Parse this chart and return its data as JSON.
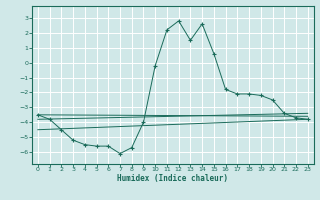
{
  "xlabel": "Humidex (Indice chaleur)",
  "bg_color": "#d0e8e8",
  "grid_color": "#b8d8d8",
  "line_color": "#1a6b5a",
  "xlim": [
    -0.5,
    23.5
  ],
  "ylim": [
    -6.8,
    3.8
  ],
  "xticks": [
    0,
    1,
    2,
    3,
    4,
    5,
    6,
    7,
    8,
    9,
    10,
    11,
    12,
    13,
    14,
    15,
    16,
    17,
    18,
    19,
    20,
    21,
    22,
    23
  ],
  "yticks": [
    -6,
    -5,
    -4,
    -3,
    -2,
    -1,
    0,
    1,
    2,
    3
  ],
  "series": {
    "main": {
      "x": [
        0,
        1,
        2,
        3,
        4,
        5,
        6,
        7,
        8,
        9,
        10,
        11,
        12,
        13,
        14,
        15,
        16,
        17,
        18,
        19,
        20,
        21,
        22,
        23
      ],
      "y": [
        -3.5,
        -3.8,
        -4.5,
        -5.2,
        -5.5,
        -5.6,
        -5.6,
        -6.1,
        -5.7,
        -4.0,
        -0.2,
        2.2,
        2.8,
        1.5,
        2.6,
        0.6,
        -1.8,
        -2.1,
        -2.1,
        -2.2,
        -2.5,
        -3.4,
        -3.7,
        -3.8
      ]
    },
    "linear1": {
      "x": [
        0,
        23
      ],
      "y": [
        -3.5,
        -3.6
      ]
    },
    "linear2": {
      "x": [
        0,
        23
      ],
      "y": [
        -3.8,
        -3.4
      ]
    },
    "linear3": {
      "x": [
        0,
        23
      ],
      "y": [
        -4.5,
        -3.8
      ]
    }
  }
}
